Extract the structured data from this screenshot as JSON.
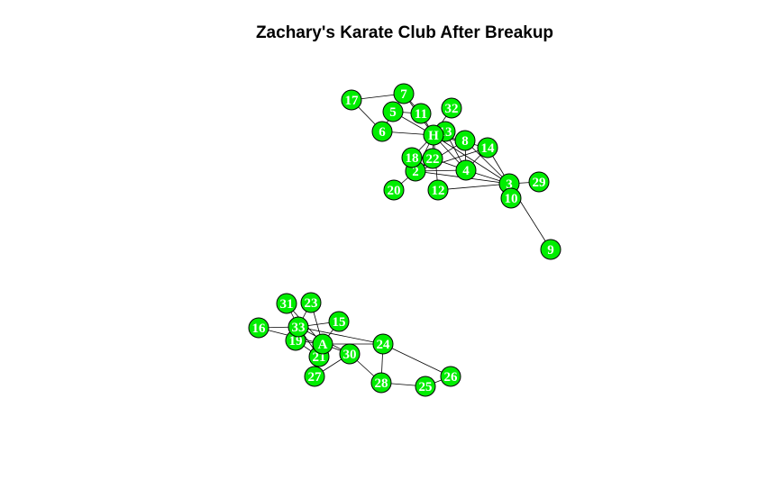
{
  "title": "Zachary's Karate Club After Breakup",
  "node_color": "#00ee00",
  "edge_color": "#000000",
  "label_color": "#ffffff",
  "nodes": [
    "1",
    "2",
    "3",
    "4",
    "5",
    "6",
    "7",
    "8",
    "9",
    "10",
    "11",
    "12",
    "13",
    "14",
    "15",
    "16",
    "17",
    "18",
    "19",
    "20",
    "21",
    "22",
    "23",
    "24",
    "25",
    "26",
    "27",
    "28",
    "29",
    "30",
    "31",
    "32",
    "33",
    "A",
    "H"
  ],
  "edges": [
    [
      "17",
      "7"
    ],
    [
      "17",
      "6"
    ],
    [
      "7",
      "11"
    ],
    [
      "7",
      "H"
    ],
    [
      "5",
      "11"
    ],
    [
      "5",
      "6"
    ],
    [
      "5",
      "H"
    ],
    [
      "11",
      "H"
    ],
    [
      "6",
      "H"
    ],
    [
      "32",
      "H"
    ],
    [
      "H",
      "13"
    ],
    [
      "H",
      "8"
    ],
    [
      "H",
      "18"
    ],
    [
      "H",
      "22"
    ],
    [
      "H",
      "2"
    ],
    [
      "H",
      "4"
    ],
    [
      "H",
      "3"
    ],
    [
      "H",
      "14"
    ],
    [
      "H",
      "12"
    ],
    [
      "2",
      "18"
    ],
    [
      "2",
      "22"
    ],
    [
      "2",
      "20"
    ],
    [
      "2",
      "4"
    ],
    [
      "2",
      "3"
    ],
    [
      "2",
      "8"
    ],
    [
      "2",
      "14"
    ],
    [
      "4",
      "8"
    ],
    [
      "4",
      "13"
    ],
    [
      "4",
      "3"
    ],
    [
      "4",
      "14"
    ],
    [
      "8",
      "3"
    ],
    [
      "14",
      "3"
    ],
    [
      "22",
      "4"
    ],
    [
      "3",
      "29"
    ],
    [
      "3",
      "10"
    ],
    [
      "3",
      "9"
    ],
    [
      "3",
      "12"
    ],
    [
      "31",
      "33"
    ],
    [
      "31",
      "A"
    ],
    [
      "23",
      "33"
    ],
    [
      "23",
      "A"
    ],
    [
      "16",
      "33"
    ],
    [
      "16",
      "A"
    ],
    [
      "15",
      "33"
    ],
    [
      "15",
      "A"
    ],
    [
      "33",
      "19"
    ],
    [
      "33",
      "21"
    ],
    [
      "33",
      "30"
    ],
    [
      "33",
      "24"
    ],
    [
      "A",
      "19"
    ],
    [
      "A",
      "21"
    ],
    [
      "A",
      "30"
    ],
    [
      "A",
      "27"
    ],
    [
      "A",
      "24"
    ],
    [
      "30",
      "27"
    ],
    [
      "30",
      "28"
    ],
    [
      "24",
      "28"
    ],
    [
      "24",
      "26"
    ],
    [
      "28",
      "25"
    ],
    [
      "25",
      "26"
    ],
    [
      "19",
      "21"
    ]
  ]
}
